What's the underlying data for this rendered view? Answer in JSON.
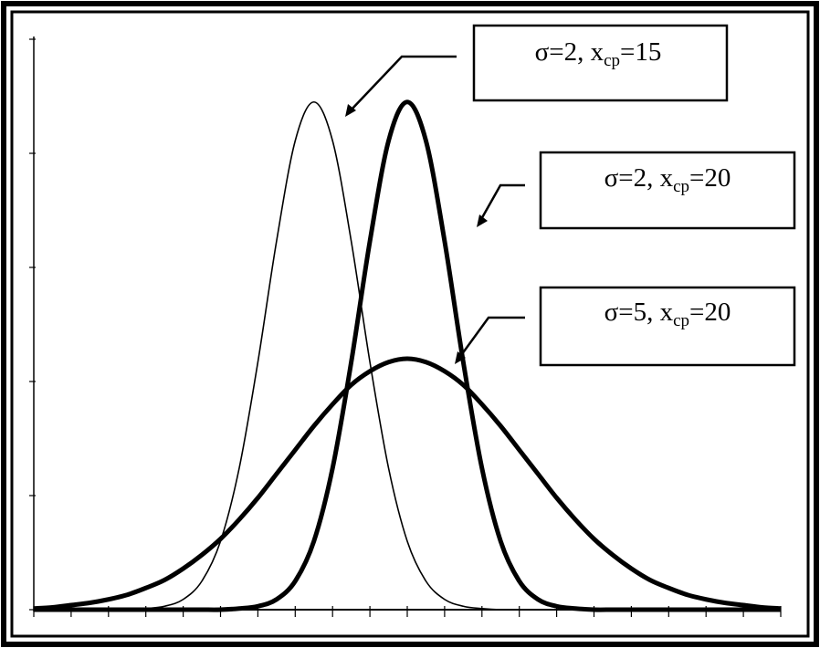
{
  "chart_data": {
    "type": "line",
    "x": [
      0,
      1,
      2,
      3,
      4,
      5,
      6,
      7,
      8,
      9,
      10,
      11,
      12,
      13,
      14,
      15,
      16,
      17,
      18,
      19,
      20,
      21,
      22,
      23,
      24,
      25,
      26,
      27,
      28,
      29,
      30,
      31,
      32,
      33,
      34,
      35,
      36,
      37,
      38,
      39,
      40
    ],
    "series": [
      {
        "color": "#000",
        "values": [
          0,
          0,
          0,
          0,
          0,
          0,
          0.01,
          0.03,
          0.09,
          0.25,
          0.6,
          1.24,
          2.17,
          3.23,
          4.11,
          4.45,
          4.11,
          3.23,
          2.17,
          1.24,
          0.6,
          0.25,
          0.09,
          0.03,
          0.01,
          0,
          0,
          0,
          0,
          0,
          0,
          0,
          0,
          0,
          0,
          0,
          0,
          0,
          0,
          0,
          0
        ]
      },
      {
        "color": "#000",
        "values": [
          0,
          0,
          0,
          0,
          0,
          0,
          0,
          0,
          0,
          0,
          0,
          0.01,
          0.03,
          0.09,
          0.25,
          0.6,
          1.24,
          2.17,
          3.23,
          4.11,
          4.45,
          4.11,
          3.23,
          2.17,
          1.24,
          0.6,
          0.25,
          0.09,
          0.03,
          0.01,
          0,
          0,
          0,
          0,
          0,
          0,
          0,
          0,
          0,
          0,
          0
        ]
      },
      {
        "color": "#000",
        "values": [
          0.01,
          0.02,
          0.04,
          0.06,
          0.09,
          0.13,
          0.19,
          0.26,
          0.36,
          0.48,
          0.62,
          0.79,
          0.98,
          1.19,
          1.4,
          1.61,
          1.8,
          1.97,
          2.09,
          2.17,
          2.2,
          2.17,
          2.09,
          1.97,
          1.8,
          1.61,
          1.4,
          1.19,
          0.98,
          0.79,
          0.62,
          0.48,
          0.36,
          0.26,
          0.19,
          0.13,
          0.09,
          0.06,
          0.04,
          0.02,
          0.01
        ]
      }
    ],
    "annotations": [
      {
        "prefix": "σ=2, x",
        "subscript": "cp",
        "suffix": "=15"
      },
      {
        "prefix": "σ=2, x",
        "subscript": "cp",
        "suffix": "=20"
      },
      {
        "prefix": "σ=5, x",
        "subscript": "cp",
        "suffix": "=20"
      }
    ],
    "xlim": [
      0,
      40
    ],
    "xticks": [
      0,
      2,
      4,
      6,
      8,
      10,
      12,
      14,
      16,
      18,
      20,
      22,
      24,
      26,
      28,
      30,
      32,
      34,
      36,
      38,
      40
    ],
    "ylim": [
      0,
      5
    ],
    "yticks": [
      0,
      1,
      2,
      3,
      4,
      5
    ]
  }
}
